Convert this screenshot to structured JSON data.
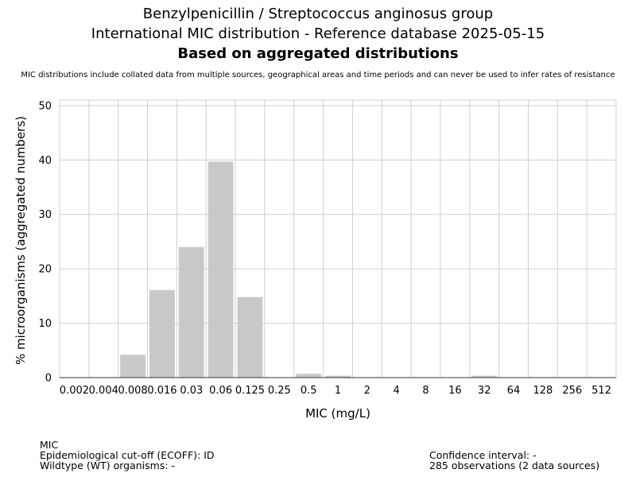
{
  "header": {
    "title_line1": "Benzylpenicillin / Streptococcus anginosus group",
    "title_line2": "International MIC distribution - Reference database 2025-05-15",
    "title_line3": "Based on aggregated distributions",
    "subtitle": "MIC distributions include collated data from multiple sources, geographical areas and time periods and can never be used to infer rates of resistance"
  },
  "footer": {
    "left": [
      "MIC",
      "Epidemiological cut-off (ECOFF): ID",
      "Wildtype (WT) organisms:  -"
    ],
    "right": [
      "Confidence interval: -",
      "285 observations (2 data sources)"
    ]
  },
  "chart_data": {
    "type": "bar",
    "xlabel": "MIC (mg/L)",
    "ylabel": "% microorganisms (aggregated numbers)",
    "categories": [
      "0.002",
      "0.004",
      "0.008",
      "0.016",
      "0.03",
      "0.06",
      "0.125",
      "0.25",
      "0.5",
      "1",
      "2",
      "4",
      "8",
      "16",
      "32",
      "64",
      "128",
      "256",
      "512"
    ],
    "values": [
      0,
      0,
      4.2,
      16.1,
      24.0,
      39.7,
      14.8,
      0,
      0.7,
      0.35,
      0,
      0,
      0,
      0,
      0.35,
      0,
      0,
      0,
      0
    ],
    "ylim": [
      0,
      51
    ],
    "yticks": [
      0,
      10,
      20,
      30,
      40,
      50
    ],
    "grid": true,
    "bar_color": "#c8c8c8"
  }
}
